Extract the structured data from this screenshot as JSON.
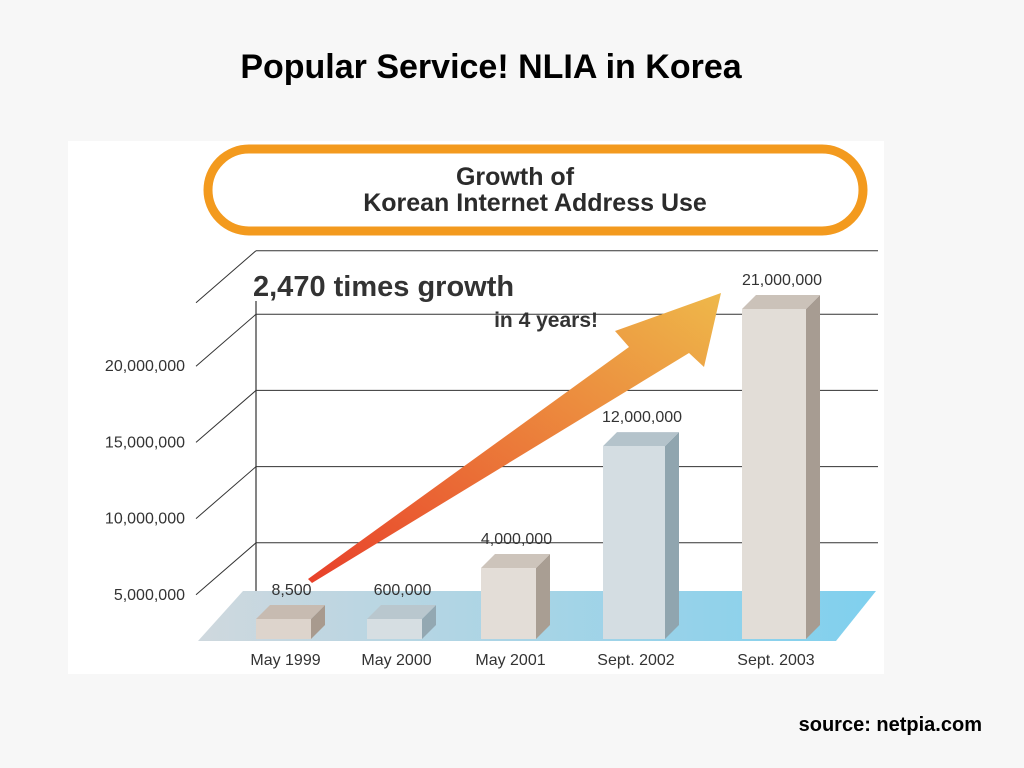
{
  "slide": {
    "title": "Popular Service!  NLIA in Korea",
    "source": "source: netpia.com"
  },
  "chart_data": {
    "type": "bar",
    "title_line1": "Growth of",
    "title_line2": "Korean Internet Address Use",
    "annotation_line1": "2,470 times growth",
    "annotation_line2": "in 4 years!",
    "categories": [
      "May 1999",
      "May 2000",
      "May 2001",
      "Sept. 2002",
      "Sept. 2003"
    ],
    "values": [
      8500,
      600000,
      4000000,
      12000000,
      21000000
    ],
    "value_labels": [
      "8,500",
      "600,000",
      "4,000,000",
      "12,000,000",
      "21,000,000"
    ],
    "y_ticks": [
      {
        "value": 5000000,
        "label": "5,000,000"
      },
      {
        "value": 10000000,
        "label": "10,000,000"
      },
      {
        "value": 15000000,
        "label": "15,000,000"
      },
      {
        "value": 20000000,
        "label": "20,000,000"
      }
    ],
    "grid": true,
    "colors": {
      "title_border": "#f39a1e",
      "arrow_start": "#e8402a",
      "arrow_end": "#eeb84a",
      "floor": "#7fd0ee",
      "grid": "#333333"
    }
  }
}
